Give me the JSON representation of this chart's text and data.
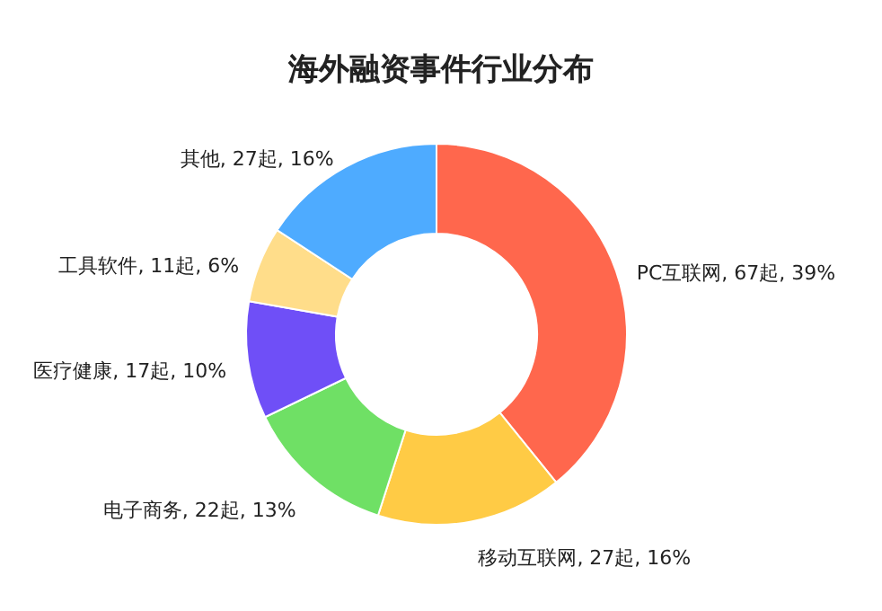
{
  "chart_data": {
    "type": "donut",
    "title": "海外融资事件行业分布",
    "categories": [
      "PC互联网",
      "移动互联网",
      "电子商务",
      "医疗健康",
      "工具软件",
      "其他"
    ],
    "values": [
      67,
      27,
      22,
      17,
      11,
      27
    ],
    "value_labels": [
      "67起, 39%",
      "27起, 16%",
      "22起, 13%",
      "17起, 10%",
      "11起, 6%",
      "27起, 16%"
    ],
    "colors": [
      "#ff674d",
      "#ffcb45",
      "#6fe065",
      "#6f4ff7",
      "#ffdd8a",
      "#4eabff"
    ]
  }
}
